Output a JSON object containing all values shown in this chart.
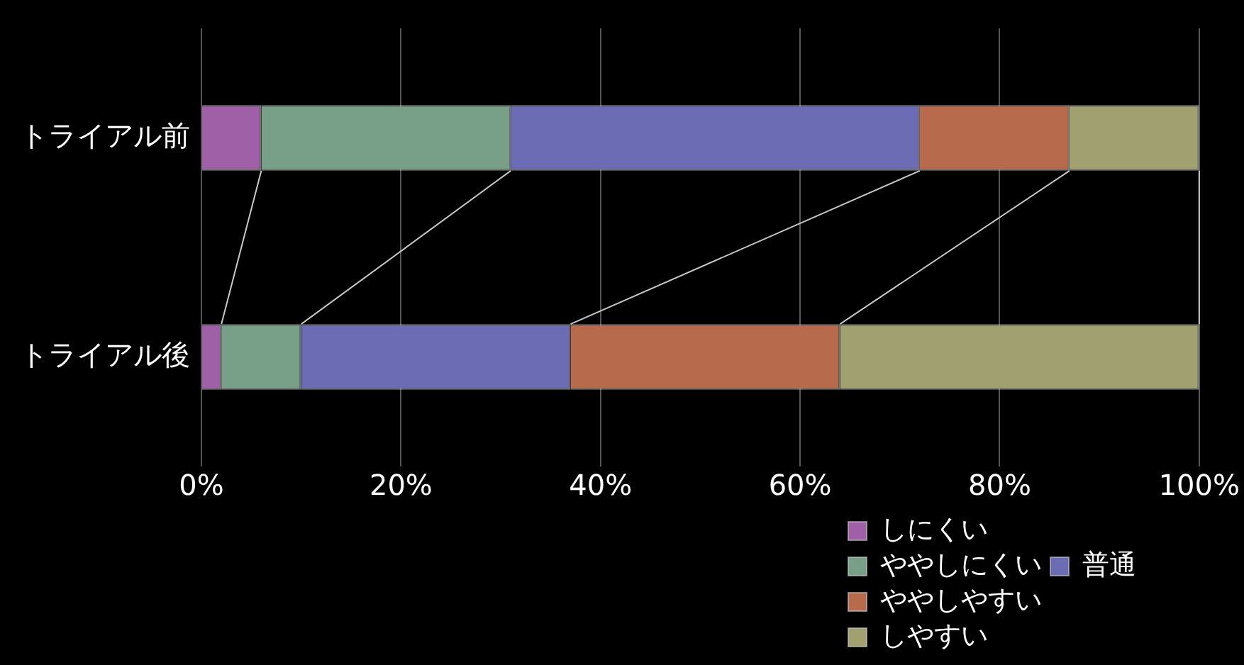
{
  "chart_data": {
    "type": "bar",
    "orientation": "horizontal",
    "stacked": true,
    "categories": [
      "トライアル前",
      "トライアル後"
    ],
    "series": [
      {
        "name": "しにくい",
        "color": "#a060a8",
        "values": [
          6,
          2
        ]
      },
      {
        "name": "ややしにくい",
        "color": "#78a088",
        "values": [
          25,
          8
        ]
      },
      {
        "name": "普通",
        "color": "#6c6cb4",
        "values": [
          41,
          27
        ]
      },
      {
        "name": "ややしやすい",
        "color": "#b86a4c",
        "values": [
          15,
          27
        ]
      },
      {
        "name": "しやすい",
        "color": "#a0a070",
        "values": [
          13,
          36
        ]
      }
    ],
    "xlim": [
      0,
      100
    ],
    "xticks": [
      {
        "value": 0,
        "label": "0%"
      },
      {
        "value": 20,
        "label": "20%"
      },
      {
        "value": 40,
        "label": "40%"
      },
      {
        "value": 60,
        "label": "60%"
      },
      {
        "value": 80,
        "label": "80%"
      },
      {
        "value": 100,
        "label": "100%"
      }
    ],
    "grid": "x",
    "legend": "bottom right"
  }
}
